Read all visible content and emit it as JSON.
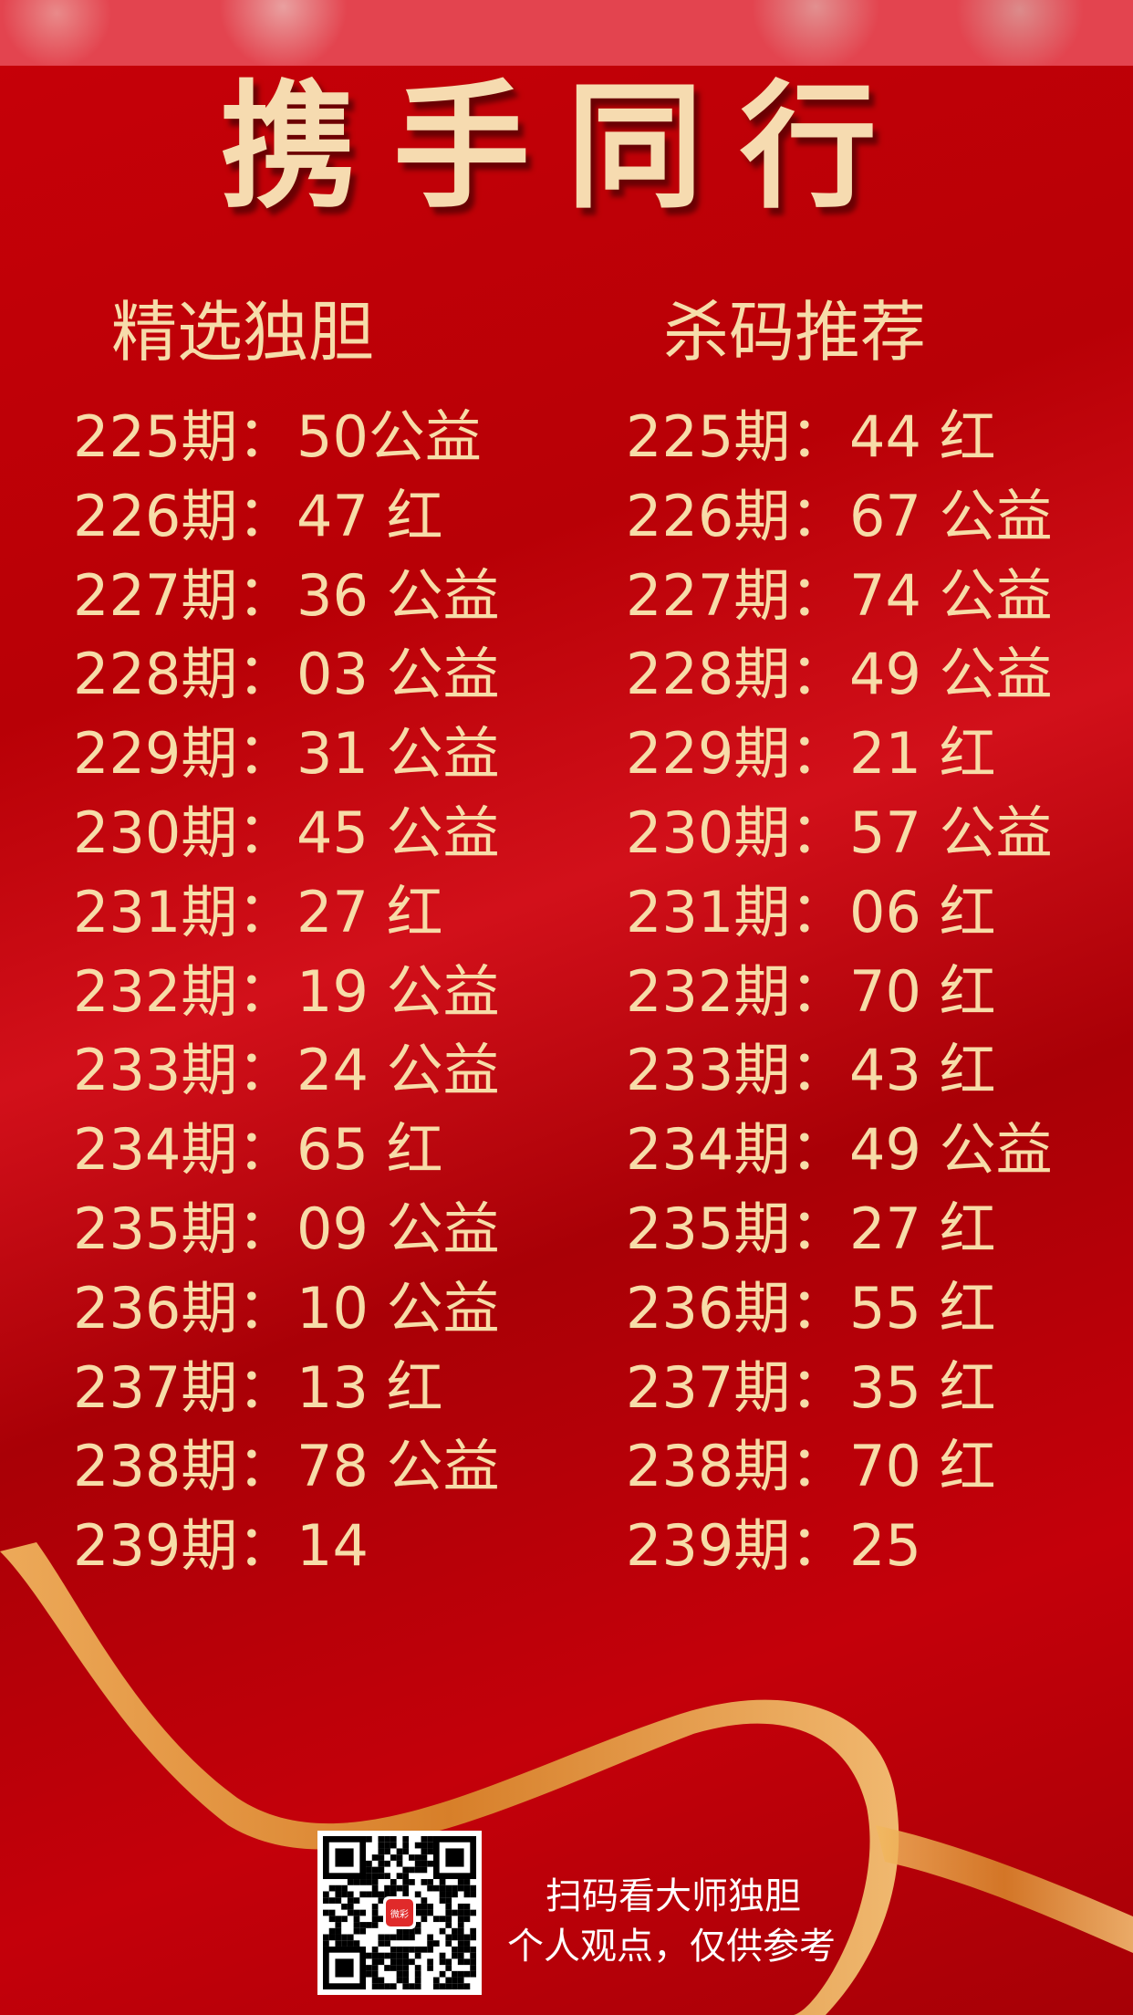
{
  "title": "携手同行",
  "left": {
    "heading": "精选独胆",
    "rows": [
      {
        "period": "225期：",
        "value": "50公益"
      },
      {
        "period": "226期：",
        "value": "47 红"
      },
      {
        "period": "227期：",
        "value": "36 公益"
      },
      {
        "period": "228期：",
        "value": "03 公益"
      },
      {
        "period": "229期：",
        "value": "31 公益"
      },
      {
        "period": "230期：",
        "value": "45 公益"
      },
      {
        "period": "231期：",
        "value": "27 红"
      },
      {
        "period": "232期：",
        "value": "19 公益"
      },
      {
        "period": "233期：",
        "value": "24 公益"
      },
      {
        "period": "234期：",
        "value": "65 红"
      },
      {
        "period": "235期：",
        "value": "09 公益"
      },
      {
        "period": "236期：",
        "value": "10 公益"
      },
      {
        "period": "237期：",
        "value": "13 红"
      },
      {
        "period": "238期：",
        "value": "78 公益"
      },
      {
        "period": "239期：",
        "value": "14"
      }
    ]
  },
  "right": {
    "heading": "杀码推荐",
    "rows": [
      {
        "period": "225期：",
        "value": "44 红"
      },
      {
        "period": "226期：",
        "value": "67 公益"
      },
      {
        "period": "227期：",
        "value": "74 公益"
      },
      {
        "period": "228期：",
        "value": "49 公益"
      },
      {
        "period": "229期：",
        "value": "21 红"
      },
      {
        "period": "230期：",
        "value": "57 公益"
      },
      {
        "period": "231期：",
        "value": "06 红"
      },
      {
        "period": "232期：",
        "value": "70 红"
      },
      {
        "period": "233期：",
        "value": "43 红"
      },
      {
        "period": "234期：",
        "value": "49 公益"
      },
      {
        "period": "235期：",
        "value": "27 红"
      },
      {
        "period": "236期：",
        "value": "55 红"
      },
      {
        "period": "237期：",
        "value": "35 红"
      },
      {
        "period": "238期：",
        "value": "70 红"
      },
      {
        "period": "239期：",
        "value": "25"
      }
    ]
  },
  "footer": {
    "line1": "扫码看大师独胆",
    "line2": "个人观点，仅供参考",
    "qr_logo": "微彩"
  },
  "colors": {
    "background": "#c00008",
    "text_gold": "#f7dca8",
    "ribbon": "#e0a040"
  }
}
